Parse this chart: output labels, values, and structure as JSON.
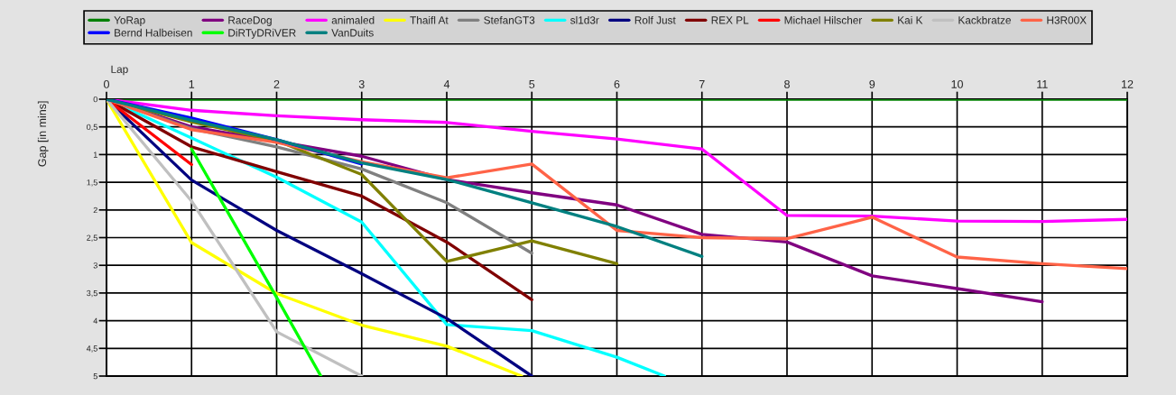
{
  "chart_data": {
    "type": "line",
    "xlabel": "Lap",
    "ylabel": "Gap [in mins]",
    "x": [
      0,
      1,
      2,
      3,
      4,
      5,
      6,
      7,
      8,
      9,
      10,
      11,
      12
    ],
    "xlim": [
      0,
      12
    ],
    "xticks": [
      0,
      1,
      2,
      3,
      4,
      5,
      6,
      7,
      8,
      9,
      10,
      11,
      12
    ],
    "ylim": [
      5,
      0
    ],
    "yticks": [
      0,
      {
        "value": 0.5,
        "label": "0,5"
      },
      1,
      {
        "value": 1.5,
        "label": "1,5"
      },
      2,
      {
        "value": 2.5,
        "label": "2,5"
      },
      3,
      {
        "value": 3.5,
        "label": "3,5"
      },
      4,
      {
        "value": 4.5,
        "label": "4,5"
      },
      5
    ],
    "grid": true,
    "legend": "top",
    "series": [
      {
        "name": "YoRap",
        "color": "#008000",
        "values": [
          0,
          0,
          0,
          0,
          0,
          0,
          0,
          0,
          0,
          0,
          0,
          0,
          0
        ]
      },
      {
        "name": "RaceDog",
        "color": "#800080",
        "values": [
          0,
          0.5,
          0.76,
          1.03,
          1.45,
          1.69,
          1.91,
          2.44,
          2.58,
          3.19,
          3.42,
          3.66,
          null
        ]
      },
      {
        "name": "animaled",
        "color": "#ff00ff",
        "values": [
          0,
          0.2,
          0.3,
          0.37,
          0.42,
          0.58,
          0.72,
          0.9,
          2.1,
          2.11,
          2.2,
          2.21,
          2.17
        ]
      },
      {
        "name": "Thaifl At",
        "color": "#ffff00",
        "x": [
          0,
          1,
          2,
          3,
          4,
          4.88
        ],
        "values": [
          0,
          2.59,
          3.51,
          4.08,
          4.46,
          5
        ]
      },
      {
        "name": "StefanGT3",
        "color": "#808080",
        "values": [
          0,
          0.53,
          0.86,
          1.26,
          1.87,
          2.78,
          null,
          null,
          null,
          null,
          null,
          null,
          null
        ]
      },
      {
        "name": "sl1d3r",
        "color": "#00ffff",
        "x": [
          0,
          1,
          2,
          3,
          4,
          5,
          6,
          6.56
        ],
        "values": [
          0,
          0.7,
          1.41,
          2.22,
          4.07,
          4.18,
          4.66,
          5
        ]
      },
      {
        "name": "Rolf Just",
        "color": "#000080",
        "values": [
          0,
          1.46,
          2.37,
          3.15,
          3.96,
          5,
          null,
          null,
          null,
          null,
          null,
          null,
          null
        ]
      },
      {
        "name": "REX PL",
        "color": "#800000",
        "values": [
          0,
          0.86,
          1.31,
          1.75,
          2.58,
          3.62,
          null,
          null,
          null,
          null,
          null,
          null,
          null
        ]
      },
      {
        "name": "Michael Hilscher",
        "color": "#ff0000",
        "values": [
          0,
          1.18,
          null,
          null,
          null,
          null,
          null,
          null,
          null,
          null,
          null,
          null,
          null
        ]
      },
      {
        "name": "Kai K",
        "color": "#808000",
        "values": [
          0,
          0.41,
          0.75,
          1.36,
          2.93,
          2.56,
          2.97,
          null,
          null,
          null,
          null,
          null,
          null
        ]
      },
      {
        "name": "Kackbratze",
        "color": "#c0c0c0",
        "values": [
          0,
          1.84,
          4.2,
          5,
          null,
          null,
          null,
          null,
          null,
          null,
          null,
          null,
          null
        ]
      },
      {
        "name": "H3R00X",
        "color": "#ff6347",
        "values": [
          0,
          0.55,
          0.78,
          1.13,
          1.42,
          1.17,
          2.37,
          2.5,
          2.52,
          2.13,
          2.85,
          2.97,
          3.06
        ]
      },
      {
        "name": "Bernd Halbeisen",
        "color": "#0000ff",
        "values": [
          0,
          0.34,
          0.73,
          1.17,
          null,
          null,
          null,
          null,
          null,
          null,
          null,
          null,
          null
        ]
      },
      {
        "name": "DiRTyDRiVER",
        "color": "#00ff00",
        "x": [
          1,
          2,
          2.52
        ],
        "values": [
          0.9,
          3.58,
          5
        ]
      },
      {
        "name": "VanDuits",
        "color": "#008080",
        "values": [
          0,
          0.38,
          0.73,
          1.15,
          1.45,
          1.87,
          2.3,
          2.84,
          null,
          null,
          null,
          null,
          null
        ]
      }
    ]
  }
}
